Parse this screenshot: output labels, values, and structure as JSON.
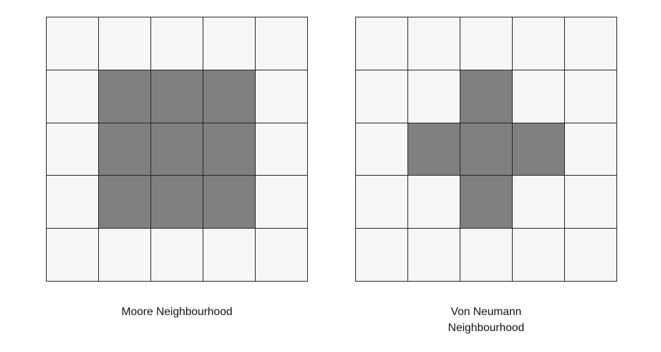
{
  "colors": {
    "active_cell": "#808080",
    "inactive_cell": "#f6f6f6",
    "grid_line": "#222222"
  },
  "diagrams": [
    {
      "caption_lines": [
        "Moore Neighbourhood"
      ],
      "grid": [
        [
          0,
          0,
          0,
          0,
          0
        ],
        [
          0,
          1,
          1,
          1,
          0
        ],
        [
          0,
          1,
          1,
          1,
          0
        ],
        [
          0,
          1,
          1,
          1,
          0
        ],
        [
          0,
          0,
          0,
          0,
          0
        ]
      ]
    },
    {
      "caption_lines": [
        "Von Neumann",
        "Neighbourhood"
      ],
      "grid": [
        [
          0,
          0,
          0,
          0,
          0
        ],
        [
          0,
          0,
          1,
          0,
          0
        ],
        [
          0,
          1,
          1,
          1,
          0
        ],
        [
          0,
          0,
          1,
          0,
          0
        ],
        [
          0,
          0,
          0,
          0,
          0
        ]
      ]
    }
  ]
}
